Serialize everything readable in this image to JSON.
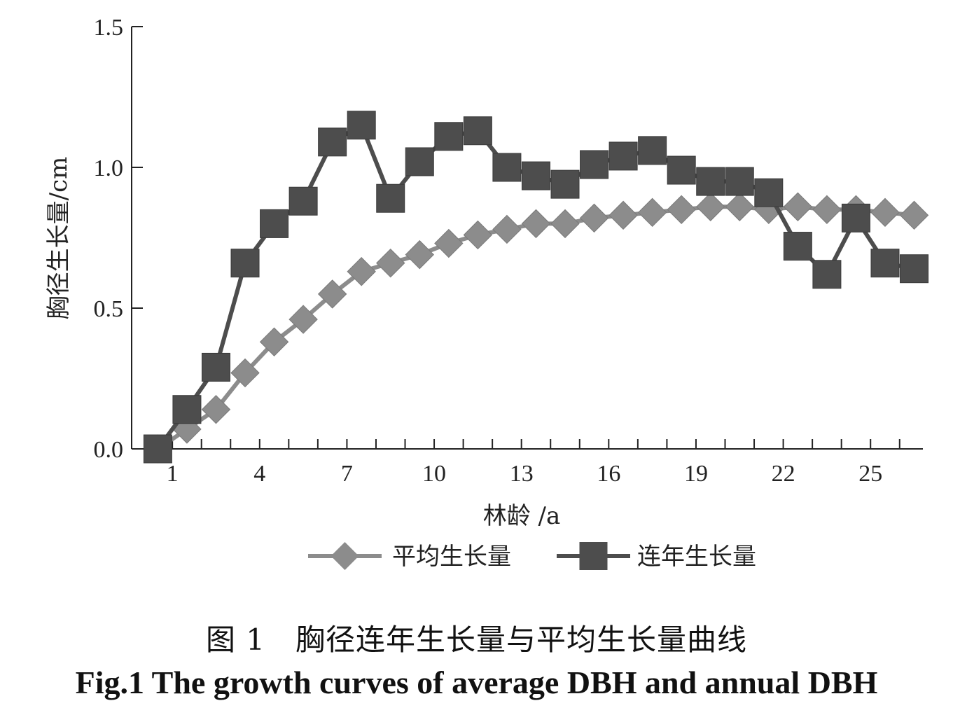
{
  "chart_data": {
    "type": "line",
    "title": "",
    "xlabel": "林龄 /a",
    "ylabel": "胸径生长量/cm",
    "x": [
      1,
      2,
      3,
      4,
      5,
      6,
      7,
      8,
      9,
      10,
      11,
      12,
      13,
      14,
      15,
      16,
      17,
      18,
      19,
      20,
      21,
      22,
      23,
      24,
      25,
      26,
      27
    ],
    "x_ticks": [
      1,
      4,
      7,
      10,
      13,
      16,
      19,
      22,
      25
    ],
    "y_ticks": [
      "0.0",
      "0.5",
      "1.0",
      "1.5"
    ],
    "xlim": [
      0.1,
      27.3
    ],
    "ylim": [
      0,
      1.5
    ],
    "legend_position": "bottom",
    "grid": false,
    "series": [
      {
        "name": "平均生长量",
        "marker": "diamond",
        "color": "#8c8c8c",
        "values": [
          0,
          0.07,
          0.14,
          0.27,
          0.38,
          0.46,
          0.55,
          0.63,
          0.66,
          0.69,
          0.73,
          0.76,
          0.78,
          0.8,
          0.8,
          0.82,
          0.83,
          0.84,
          0.85,
          0.86,
          0.86,
          0.85,
          0.86,
          0.85,
          0.85,
          0.84,
          0.83
        ]
      },
      {
        "name": "连年生长量",
        "marker": "square",
        "color": "#4d4d4d",
        "values": [
          0,
          0.14,
          0.29,
          0.66,
          0.8,
          0.88,
          1.09,
          1.15,
          0.89,
          1.02,
          1.11,
          1.13,
          1.0,
          0.97,
          0.94,
          1.01,
          1.04,
          1.06,
          0.99,
          0.95,
          0.95,
          0.91,
          0.72,
          0.62,
          0.82,
          0.66,
          0.64
        ]
      }
    ]
  },
  "caption": {
    "chinese": "图 1　胸径连年生长量与平均生长量曲线",
    "english": "Fig.1   The growth curves of average DBH and annual DBH"
  }
}
